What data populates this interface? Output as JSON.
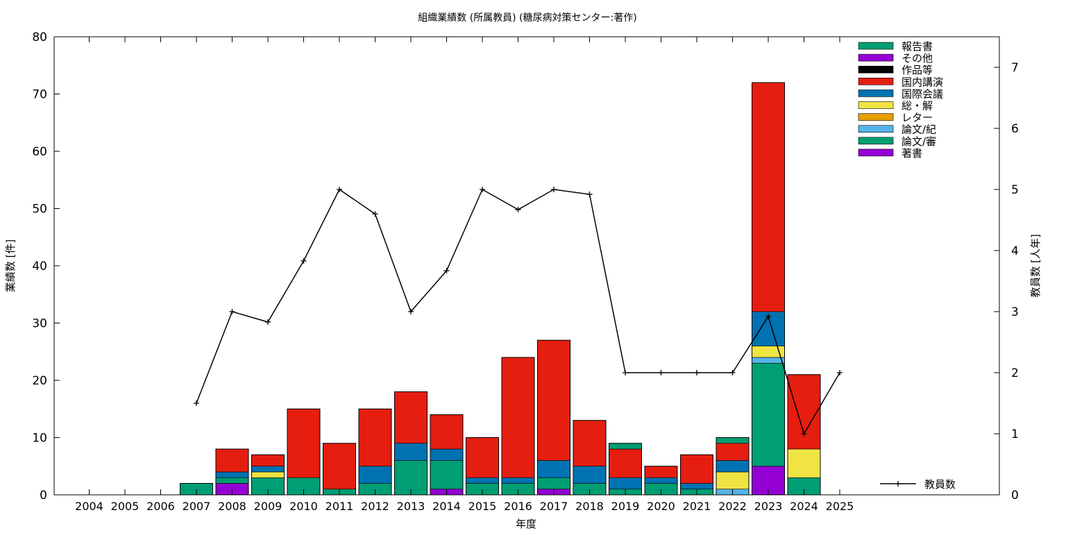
{
  "chart_data": {
    "type": "bar",
    "stacked": true,
    "title": "組織業績数 (所属教員) (糖尿病対策センター:著作)",
    "xlabel": "年度",
    "ylabel": "業績数 [件]",
    "y2label": "教員数 [人年]",
    "ylim": [
      0,
      80
    ],
    "y2lim": [
      0,
      7.5
    ],
    "yticks": [
      0,
      10,
      20,
      30,
      40,
      50,
      60,
      70,
      80
    ],
    "y2ticks": [
      0,
      1,
      2,
      3,
      4,
      5,
      6,
      7
    ],
    "grid": false,
    "legend_position": "top-right",
    "categories": [
      "2004",
      "2005",
      "2006",
      "2007",
      "2008",
      "2009",
      "2010",
      "2011",
      "2012",
      "2013",
      "2014",
      "2015",
      "2016",
      "2017",
      "2018",
      "2019",
      "2020",
      "2021",
      "2022",
      "2023",
      "2024",
      "2025"
    ],
    "series": [
      {
        "name": "著書",
        "color": "#9400d3",
        "values": [
          0,
          0,
          0,
          0,
          2,
          0,
          0,
          0,
          0,
          0,
          1,
          0,
          0,
          1,
          0,
          0,
          0,
          0,
          0,
          5,
          0,
          0
        ]
      },
      {
        "name": "論文/審",
        "color": "#009e73",
        "values": [
          0,
          0,
          0,
          2,
          1,
          3,
          3,
          1,
          2,
          6,
          5,
          2,
          2,
          2,
          2,
          1,
          2,
          1,
          0,
          18,
          3,
          0
        ]
      },
      {
        "name": "論文/紀",
        "color": "#56b4e9",
        "values": [
          0,
          0,
          0,
          0,
          0,
          0,
          0,
          0,
          0,
          0,
          0,
          0,
          0,
          0,
          0,
          0,
          0,
          0,
          1,
          1,
          0,
          0
        ]
      },
      {
        "name": "レター",
        "color": "#e69f00",
        "values": [
          0,
          0,
          0,
          0,
          0,
          0,
          0,
          0,
          0,
          0,
          0,
          0,
          0,
          0,
          0,
          0,
          0,
          0,
          0,
          0,
          0,
          0
        ]
      },
      {
        "name": "総・解",
        "color": "#f0e442",
        "values": [
          0,
          0,
          0,
          0,
          0,
          1,
          0,
          0,
          0,
          0,
          0,
          0,
          0,
          0,
          0,
          0,
          0,
          0,
          3,
          2,
          5,
          0
        ]
      },
      {
        "name": "国際会議",
        "color": "#0072b2",
        "values": [
          0,
          0,
          0,
          0,
          1,
          1,
          0,
          0,
          3,
          3,
          2,
          1,
          1,
          3,
          3,
          2,
          1,
          1,
          2,
          6,
          0,
          0
        ]
      },
      {
        "name": "国内講演",
        "color": "#e51e10",
        "values": [
          0,
          0,
          0,
          0,
          4,
          2,
          12,
          8,
          10,
          9,
          6,
          7,
          21,
          21,
          8,
          5,
          2,
          5,
          3,
          40,
          13,
          0
        ]
      },
      {
        "name": "作品等",
        "color": "#000000",
        "values": [
          0,
          0,
          0,
          0,
          0,
          0,
          0,
          0,
          0,
          0,
          0,
          0,
          0,
          0,
          0,
          0,
          0,
          0,
          0,
          0,
          0,
          0
        ]
      },
      {
        "name": "その他",
        "color": "#9400d3",
        "values": [
          0,
          0,
          0,
          0,
          0,
          0,
          0,
          0,
          0,
          0,
          0,
          0,
          0,
          0,
          0,
          0,
          0,
          0,
          0,
          0,
          0,
          0
        ]
      },
      {
        "name": "報告書",
        "color": "#009e73",
        "values": [
          0,
          0,
          0,
          0,
          0,
          0,
          0,
          0,
          0,
          0,
          0,
          0,
          0,
          0,
          0,
          1,
          0,
          0,
          1,
          0,
          0,
          0
        ]
      }
    ],
    "line": {
      "name": "教員数",
      "axis": "y2",
      "color": "#000000",
      "values": [
        null,
        null,
        null,
        1.5,
        3.0,
        2.83,
        3.83,
        5.0,
        4.6,
        3.0,
        3.67,
        5.0,
        4.67,
        5.0,
        4.92,
        2.0,
        2.0,
        2.0,
        2.0,
        2.92,
        1.0,
        2.0
      ]
    }
  }
}
